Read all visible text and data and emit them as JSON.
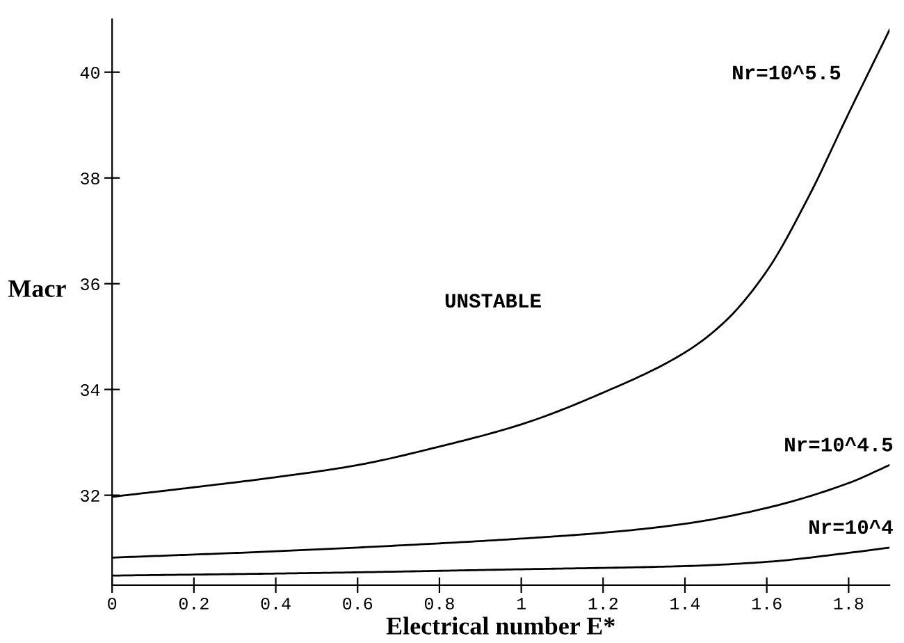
{
  "chart_data": {
    "type": "line",
    "xlabel": "Electrical number E*",
    "ylabel": "Macr",
    "xlim": [
      0,
      1.9
    ],
    "ylim": [
      30.3,
      41
    ],
    "xticks": [
      0,
      0.2,
      0.4,
      0.6,
      0.8,
      1,
      1.2,
      1.4,
      1.6,
      1.8
    ],
    "yticks": [
      32,
      34,
      36,
      38,
      40
    ],
    "grid": false,
    "legend": false,
    "marker": "none",
    "line_style": "solid",
    "series": [
      {
        "name": "Nr=10^5.5",
        "color": "#000000",
        "x": [
          0,
          0.2,
          0.4,
          0.6,
          0.8,
          1.0,
          1.2,
          1.4,
          1.5,
          1.6,
          1.7,
          1.8,
          1.9
        ],
        "values": [
          31.97,
          32.15,
          32.34,
          32.57,
          32.92,
          33.34,
          33.94,
          34.7,
          35.3,
          36.24,
          37.61,
          39.22,
          40.8
        ]
      },
      {
        "name": "Nr=10^4.5",
        "color": "#000000",
        "x": [
          0,
          0.4,
          0.8,
          1.0,
          1.2,
          1.4,
          1.6,
          1.8,
          1.9
        ],
        "values": [
          30.82,
          30.94,
          31.09,
          31.18,
          31.29,
          31.46,
          31.76,
          32.23,
          32.57
        ]
      },
      {
        "name": "Nr=10^4",
        "color": "#000000",
        "x": [
          0,
          0.5,
          1.0,
          1.4,
          1.6,
          1.8,
          1.9
        ],
        "values": [
          30.48,
          30.53,
          30.6,
          30.66,
          30.74,
          30.91,
          31.01
        ]
      }
    ],
    "annotations": [
      "UNSTABLE"
    ]
  }
}
